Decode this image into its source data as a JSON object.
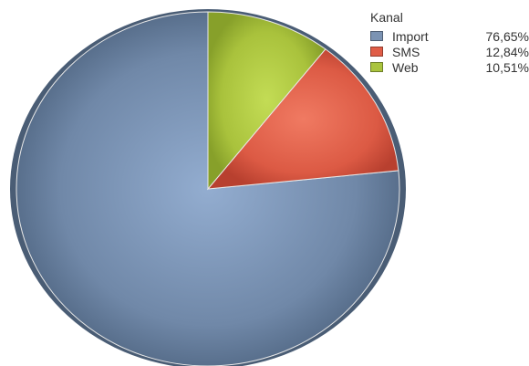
{
  "chart_data": {
    "type": "pie",
    "title": "",
    "legend_title": "Kanal",
    "legend_position": "top-right",
    "slices": [
      {
        "label": "Import",
        "value": 76.65,
        "value_label": "76,65%",
        "color": "#7b93b3"
      },
      {
        "label": "SMS",
        "value": 12.84,
        "value_label": "12,84%",
        "color": "#e05d47"
      },
      {
        "label": "Web",
        "value": 10.51,
        "value_label": "10,51%",
        "color": "#aac43e"
      }
    ]
  }
}
